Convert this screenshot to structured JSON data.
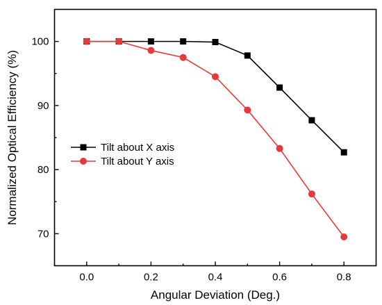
{
  "chart_data": {
    "type": "line",
    "title": "",
    "xlabel": "Angular Deviation (Deg.)",
    "ylabel": "Normalized Optical Efficiency (%)",
    "xlim": [
      -0.1,
      0.9
    ],
    "ylim": [
      65,
      105
    ],
    "x_ticks": [
      0.0,
      0.2,
      0.4,
      0.6,
      0.8
    ],
    "x_tick_labels": [
      "0.0",
      "0.2",
      "0.4",
      "0.6",
      "0.8"
    ],
    "y_ticks": [
      70,
      80,
      90,
      100
    ],
    "y_tick_labels": [
      "70",
      "80",
      "90",
      "100"
    ],
    "grid": false,
    "legend_position": "center-left",
    "x": [
      0.0,
      0.1,
      0.2,
      0.3,
      0.4,
      0.5,
      0.6,
      0.7,
      0.8
    ],
    "series": [
      {
        "name": "Tilt about X axis",
        "color": "#000000",
        "marker": "square",
        "values": [
          100,
          100,
          100,
          100,
          99.9,
          97.8,
          92.8,
          87.7,
          82.7
        ]
      },
      {
        "name": "Tilt about Y axis",
        "color": "#e8393a",
        "marker": "circle",
        "values": [
          100,
          100,
          98.6,
          97.5,
          94.5,
          89.3,
          83.3,
          76.2,
          69.5
        ]
      }
    ]
  }
}
